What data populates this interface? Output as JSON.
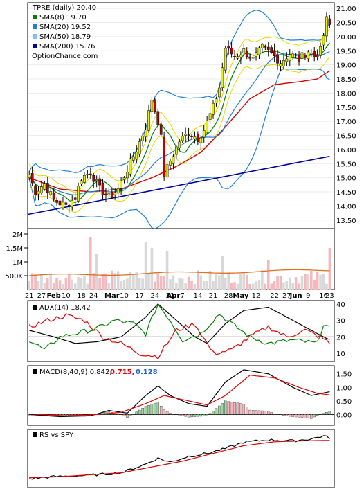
{
  "chart_data": [
    {
      "type": "candlestick",
      "panel": "price",
      "legend": [
        {
          "label": "TPRE (daily) 20.40",
          "color": null
        },
        {
          "label": "SMA(8) 19.70",
          "color": "#008000"
        },
        {
          "label": "SMA(20) 19.52",
          "color": "#1f7fd1"
        },
        {
          "label": "SMA(50) 18.79",
          "color": "#7fbfff"
        },
        {
          "label": "SMA(200) 15.76",
          "color": "#0000a0"
        },
        {
          "label": "OptionChance.com",
          "color": null
        }
      ],
      "y_ticks": [
        "13.50",
        "14.00",
        "14.50",
        "15.00",
        "15.50",
        "16.00",
        "16.50",
        "17.00",
        "17.50",
        "18.00",
        "18.50",
        "19.00",
        "19.50",
        "20.00",
        "20.50",
        "21.00"
      ],
      "ylim": [
        13.2,
        21.2
      ],
      "anchors": [
        {
          "x": 0,
          "close": 15.1
        },
        {
          "x": 2,
          "close": 14.5
        },
        {
          "x": 5,
          "close": 14.8
        },
        {
          "x": 8,
          "close": 14.2
        },
        {
          "x": 12,
          "close": 14.0
        },
        {
          "x": 15,
          "close": 14.3
        },
        {
          "x": 17,
          "close": 15.0
        },
        {
          "x": 20,
          "close": 15.2
        },
        {
          "x": 23,
          "close": 14.6
        },
        {
          "x": 26,
          "close": 14.3
        },
        {
          "x": 29,
          "close": 14.6
        },
        {
          "x": 32,
          "close": 15.3
        },
        {
          "x": 35,
          "close": 16.0
        },
        {
          "x": 38,
          "close": 16.8
        },
        {
          "x": 40,
          "close": 17.8
        },
        {
          "x": 42,
          "close": 17.0
        },
        {
          "x": 43,
          "close": 16.4
        },
        {
          "x": 44,
          "close": 15.1
        },
        {
          "x": 46,
          "close": 15.6
        },
        {
          "x": 49,
          "close": 16.3
        },
        {
          "x": 52,
          "close": 16.6
        },
        {
          "x": 55,
          "close": 16.4
        },
        {
          "x": 57,
          "close": 16.7
        },
        {
          "x": 60,
          "close": 17.5
        },
        {
          "x": 62,
          "close": 18.2
        },
        {
          "x": 64,
          "close": 19.6
        },
        {
          "x": 67,
          "close": 19.3
        },
        {
          "x": 70,
          "close": 19.5
        },
        {
          "x": 73,
          "close": 19.2
        },
        {
          "x": 76,
          "close": 19.6
        },
        {
          "x": 79,
          "close": 19.4
        },
        {
          "x": 82,
          "close": 19.1
        },
        {
          "x": 85,
          "close": 19.4
        },
        {
          "x": 88,
          "close": 19.2
        },
        {
          "x": 91,
          "close": 19.5
        },
        {
          "x": 93,
          "close": 19.3
        },
        {
          "x": 95,
          "close": 19.5
        },
        {
          "x": 97,
          "close": 20.6
        },
        {
          "x": 98,
          "close": 20.4
        }
      ],
      "sma_200_line": {
        "start": 13.7,
        "end": 15.76
      },
      "sma_50_line": [
        {
          "x": 0,
          "y": 15.0
        },
        {
          "x": 10,
          "y": 14.6
        },
        {
          "x": 20,
          "y": 14.5
        },
        {
          "x": 30,
          "y": 14.6
        },
        {
          "x": 40,
          "y": 15.0
        },
        {
          "x": 48,
          "y": 15.4
        },
        {
          "x": 56,
          "y": 15.9
        },
        {
          "x": 64,
          "y": 16.8
        },
        {
          "x": 72,
          "y": 17.8
        },
        {
          "x": 80,
          "y": 18.3
        },
        {
          "x": 88,
          "y": 18.4
        },
        {
          "x": 94,
          "y": 18.5
        },
        {
          "x": 98,
          "y": 18.79
        }
      ]
    },
    {
      "type": "bar",
      "panel": "volume",
      "y_ticks": [
        "2M",
        "1.5M",
        "1M",
        "500K"
      ],
      "ylim": [
        0,
        2200000
      ],
      "x_tick_labels": [
        "21",
        "27",
        "Feb",
        "10",
        "18",
        "24",
        "Mar",
        "10",
        "17",
        "24",
        "31",
        "Apr",
        "7",
        "14",
        "21",
        "28",
        "May",
        "12",
        "22",
        "27",
        "Jun",
        "9",
        "16",
        "23"
      ],
      "spikes": [
        {
          "x": 20,
          "value": 1900000
        },
        {
          "x": 22,
          "value": 1300000
        },
        {
          "x": 38,
          "value": 1700000
        },
        {
          "x": 40,
          "value": 1500000
        },
        {
          "x": 45,
          "value": 1400000
        },
        {
          "x": 63,
          "value": 1200000
        },
        {
          "x": 78,
          "value": 1050000
        },
        {
          "x": 98,
          "value": 1500000
        }
      ],
      "average_line": {
        "start": 500000,
        "end": 700000
      }
    },
    {
      "type": "line",
      "panel": "adx",
      "legend": "ADX(14) 18.42",
      "y_ticks": [
        "10",
        "20",
        "30",
        "40"
      ],
      "ylim": [
        5,
        42
      ],
      "series": [
        {
          "name": "ADX",
          "color": "#000000",
          "anchors": [
            [
              0,
              24
            ],
            [
              8,
              20
            ],
            [
              15,
              16
            ],
            [
              22,
              17
            ],
            [
              30,
              20
            ],
            [
              38,
              32
            ],
            [
              42,
              40
            ],
            [
              48,
              30
            ],
            [
              54,
              20
            ],
            [
              58,
              16
            ],
            [
              64,
              28
            ],
            [
              70,
              36
            ],
            [
              78,
              38
            ],
            [
              86,
              30
            ],
            [
              92,
              24
            ],
            [
              97,
              19
            ],
            [
              98,
              18.42
            ]
          ]
        },
        {
          "name": "+DI",
          "color": "#008000",
          "anchors": [
            [
              0,
              18
            ],
            [
              5,
              12
            ],
            [
              10,
              20
            ],
            [
              15,
              22
            ],
            [
              22,
              25
            ],
            [
              28,
              30
            ],
            [
              34,
              28
            ],
            [
              38,
              22
            ],
            [
              42,
              40
            ],
            [
              46,
              30
            ],
            [
              50,
              18
            ],
            [
              56,
              22
            ],
            [
              62,
              34
            ],
            [
              66,
              28
            ],
            [
              72,
              20
            ],
            [
              78,
              16
            ],
            [
              86,
              18
            ],
            [
              94,
              16
            ],
            [
              96,
              28
            ],
            [
              98,
              25
            ]
          ]
        },
        {
          "name": "-DI",
          "color": "#e00000",
          "anchors": [
            [
              0,
              26
            ],
            [
              6,
              30
            ],
            [
              12,
              33
            ],
            [
              18,
              30
            ],
            [
              24,
              20
            ],
            [
              30,
              16
            ],
            [
              36,
              10
            ],
            [
              42,
              8
            ],
            [
              48,
              24
            ],
            [
              54,
              28
            ],
            [
              60,
              10
            ],
            [
              66,
              12
            ],
            [
              72,
              20
            ],
            [
              78,
              26
            ],
            [
              84,
              20
            ],
            [
              90,
              24
            ],
            [
              95,
              20
            ],
            [
              98,
              16
            ]
          ]
        }
      ]
    },
    {
      "type": "line",
      "panel": "macd",
      "legend_prefix": "MACD(8,40,9) 0.842,",
      "legend_signal": "0.715,",
      "legend_hist": "0.128",
      "y_ticks": [
        "0.00",
        "0.50",
        "1.00",
        "1.50"
      ],
      "ylim": [
        -0.4,
        1.8
      ],
      "series": [
        {
          "name": "MACD",
          "color": "#000000",
          "anchors": [
            [
              0,
              0.0
            ],
            [
              10,
              -0.08
            ],
            [
              20,
              -0.05
            ],
            [
              26,
              0.15
            ],
            [
              32,
              0.05
            ],
            [
              38,
              0.7
            ],
            [
              42,
              1.05
            ],
            [
              46,
              0.7
            ],
            [
              52,
              0.4
            ],
            [
              58,
              0.3
            ],
            [
              64,
              1.2
            ],
            [
              70,
              1.65
            ],
            [
              78,
              1.5
            ],
            [
              86,
              1.0
            ],
            [
              92,
              0.7
            ],
            [
              98,
              0.84
            ]
          ]
        },
        {
          "name": "Signal",
          "color": "#e00000",
          "anchors": [
            [
              0,
              0.02
            ],
            [
              12,
              -0.05
            ],
            [
              22,
              0.0
            ],
            [
              30,
              0.08
            ],
            [
              38,
              0.4
            ],
            [
              44,
              0.7
            ],
            [
              50,
              0.55
            ],
            [
              58,
              0.35
            ],
            [
              64,
              0.7
            ],
            [
              72,
              1.45
            ],
            [
              80,
              1.35
            ],
            [
              88,
              1.0
            ],
            [
              94,
              0.78
            ],
            [
              98,
              0.72
            ]
          ]
        }
      ]
    },
    {
      "type": "line",
      "panel": "relative_strength",
      "legend": "RS vs SPY",
      "series": [
        {
          "name": "RS",
          "color": "#000000",
          "anchors": [
            [
              0,
              10
            ],
            [
              8,
              14
            ],
            [
              16,
              16
            ],
            [
              22,
              18
            ],
            [
              30,
              22
            ],
            [
              38,
              40
            ],
            [
              42,
              52
            ],
            [
              46,
              44
            ],
            [
              52,
              56
            ],
            [
              58,
              62
            ],
            [
              64,
              72
            ],
            [
              70,
              85
            ],
            [
              78,
              90
            ],
            [
              86,
              88
            ],
            [
              92,
              92
            ],
            [
              96,
              98
            ],
            [
              98,
              94
            ]
          ]
        },
        {
          "name": "MA",
          "color": "#e00000",
          "anchors": [
            [
              0,
              12
            ],
            [
              10,
              14
            ],
            [
              20,
              18
            ],
            [
              30,
              22
            ],
            [
              40,
              34
            ],
            [
              50,
              46
            ],
            [
              60,
              62
            ],
            [
              70,
              78
            ],
            [
              80,
              86
            ],
            [
              90,
              88
            ],
            [
              98,
              89
            ]
          ]
        }
      ]
    }
  ]
}
